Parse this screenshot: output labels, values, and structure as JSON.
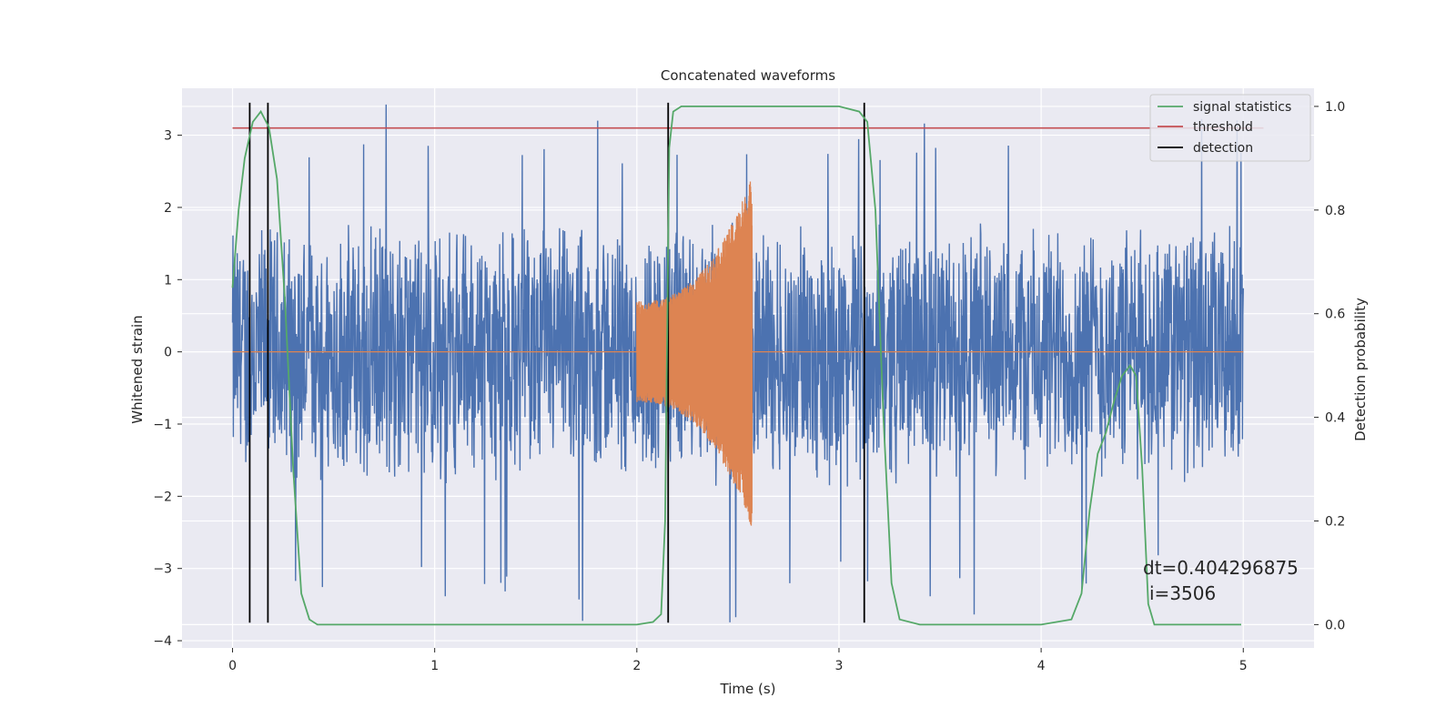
{
  "chart_data": {
    "type": "line",
    "title": "Concatenated waveforms",
    "xlabel": "Time (s)",
    "ylabel": "Whitened strain",
    "y2label": "Detection probability",
    "xlim": [
      -0.25,
      5.35
    ],
    "ylim": [
      -4.1,
      3.65
    ],
    "y2lim": [
      -0.045,
      1.035
    ],
    "xticks": [
      0,
      1,
      2,
      3,
      4,
      5
    ],
    "yticks": [
      -4,
      -3,
      -2,
      -1,
      0,
      1,
      2,
      3
    ],
    "y2ticks": [
      0.0,
      0.2,
      0.4,
      0.6,
      0.8,
      1.0
    ],
    "ytick_labels": [
      "−4",
      "−3",
      "−2",
      "−1",
      "0",
      "1",
      "2",
      "3"
    ],
    "y2tick_labels": [
      "0.0",
      "0.2",
      "0.4",
      "0.6",
      "0.8",
      "1.0"
    ],
    "grid": true,
    "legend_position": "top-right",
    "colors": {
      "strain": "#4c72b0",
      "injection": "#dd8452",
      "signal_statistics": "#55a868",
      "threshold": "#c44e52",
      "detection": "#000000",
      "background": "#eaeaf2",
      "grid": "#ffffff"
    },
    "series": [
      {
        "name": "signal statistics",
        "axis": "right",
        "x": [
          0.0,
          0.03,
          0.06,
          0.1,
          0.14,
          0.18,
          0.22,
          0.26,
          0.3,
          0.34,
          0.38,
          0.42,
          0.6,
          1.0,
          1.5,
          2.0,
          2.08,
          2.12,
          2.14,
          2.16,
          2.18,
          2.22,
          2.6,
          3.0,
          3.1,
          3.14,
          3.18,
          3.22,
          3.26,
          3.3,
          3.4,
          3.6,
          4.0,
          4.15,
          4.2,
          4.24,
          4.28,
          4.32,
          4.36,
          4.4,
          4.44,
          4.47,
          4.5,
          4.53,
          4.56,
          4.6,
          4.8,
          4.99
        ],
        "y": [
          0.65,
          0.8,
          0.9,
          0.97,
          0.99,
          0.96,
          0.86,
          0.62,
          0.3,
          0.06,
          0.01,
          0.0,
          0.0,
          0.0,
          0.0,
          0.0,
          0.005,
          0.02,
          0.2,
          0.92,
          0.99,
          1.0,
          1.0,
          1.0,
          0.99,
          0.97,
          0.8,
          0.4,
          0.08,
          0.01,
          0.0,
          0.0,
          0.0,
          0.01,
          0.06,
          0.22,
          0.33,
          0.37,
          0.43,
          0.48,
          0.5,
          0.48,
          0.3,
          0.04,
          0.0,
          0.0,
          0.0,
          0.0
        ]
      },
      {
        "name": "threshold",
        "axis": "left",
        "x": [
          0.0,
          5.1
        ],
        "y": [
          3.1,
          3.1
        ]
      },
      {
        "name": "detection",
        "axis": "left",
        "x": [
          0.085,
          0.175,
          2.155,
          3.125
        ],
        "ymin": -3.75,
        "ymax": 3.45
      },
      {
        "name": "",
        "axis": "left",
        "description": "whitened strain noise",
        "x_range": [
          0.0,
          5.0
        ],
        "envelope": 1.9,
        "peak": 3.45,
        "trough": -3.75
      },
      {
        "name": "",
        "axis": "left",
        "description": "injected chirp",
        "x_start": 2.0,
        "x_end": 2.57,
        "amp_start": 0.7,
        "amp_end": 2.45
      }
    ],
    "annotations": [
      "dt=0.404296875",
      "i=3506"
    ]
  }
}
